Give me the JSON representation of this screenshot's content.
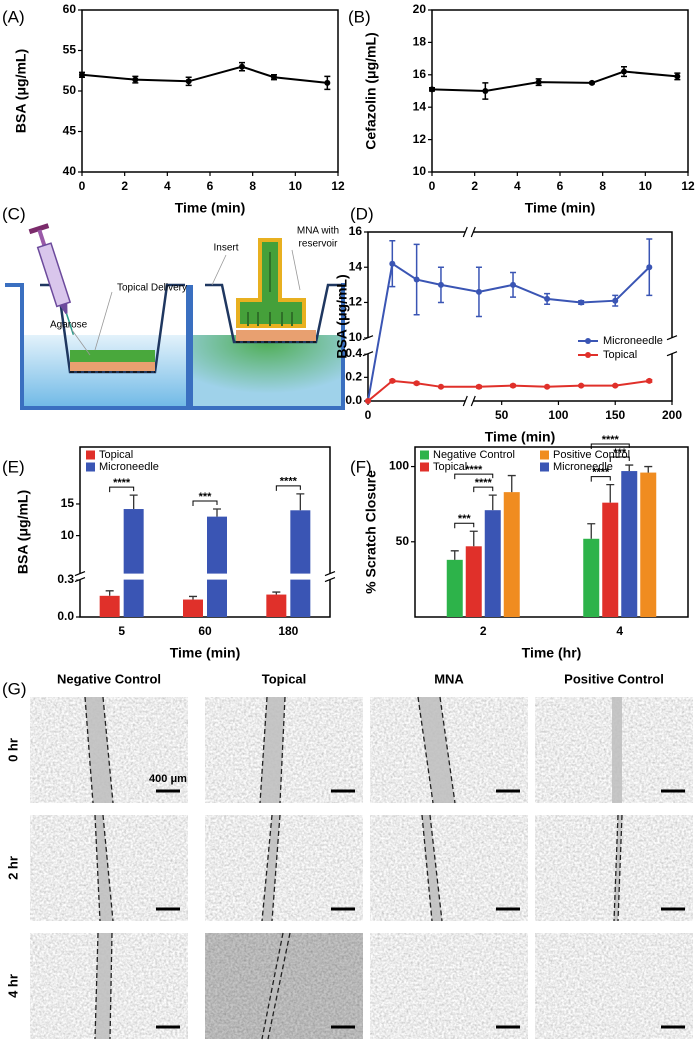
{
  "chart_data": [
    {
      "type": "line",
      "panel": "(A)",
      "x": [
        0,
        2.5,
        5,
        7.5,
        9,
        11.5
      ],
      "values": [
        52,
        51.4,
        51.2,
        53,
        51.7,
        51
      ],
      "errors": [
        0.3,
        0.4,
        0.5,
        0.5,
        0.3,
        0.8
      ],
      "color": "#000000",
      "xlabel": "Time (min)",
      "ylabel": "BSA (μg/mL)",
      "xlim": [
        0,
        12
      ],
      "xticks": [
        0,
        2,
        4,
        6,
        8,
        10,
        12
      ],
      "ylim": [
        40,
        60
      ],
      "yticks": [
        40,
        45,
        50,
        55,
        60
      ]
    },
    {
      "type": "line",
      "panel": "(B)",
      "x": [
        0,
        2.5,
        5,
        7.5,
        9,
        11.5
      ],
      "values": [
        15.1,
        15.0,
        15.55,
        15.5,
        16.2,
        15.9
      ],
      "errors": [
        0.1,
        0.5,
        0.2,
        0.05,
        0.3,
        0.2
      ],
      "color": "#000000",
      "xlabel": "Time (min)",
      "ylabel": "Cefazolin (μg/mL)",
      "xlim": [
        0,
        12
      ],
      "xticks": [
        0,
        2,
        4,
        6,
        8,
        10,
        12
      ],
      "ylim": [
        10,
        20
      ],
      "yticks": [
        10,
        12,
        14,
        16,
        18,
        20
      ]
    },
    {
      "type": "line",
      "panel": "(D)",
      "x": [
        0,
        5,
        10,
        15,
        30,
        60,
        90,
        120,
        150,
        180
      ],
      "series": [
        {
          "name": "Microneedle",
          "color": "#3a55b4",
          "values": [
            0,
            14.2,
            13.3,
            13.0,
            12.6,
            13.0,
            12.2,
            12.0,
            12.1,
            14.0
          ],
          "errors": [
            0,
            1.3,
            2.0,
            1.0,
            1.4,
            0.7,
            0.3,
            0.1,
            0.3,
            1.6
          ]
        },
        {
          "name": "Topical",
          "color": "#e0302a",
          "values": [
            0,
            0.17,
            0.15,
            0.12,
            0.12,
            0.13,
            0.12,
            0.13,
            0.13,
            0.17
          ],
          "errors": [
            0,
            0.01,
            0.01,
            0.005,
            0.01,
            0.01,
            0.005,
            0.005,
            0.005,
            0.01
          ]
        }
      ],
      "xlabel": "Time (min)",
      "ylabel": "BSA (μg/mL)",
      "xlim": [
        0,
        200
      ],
      "xbreak": [
        20,
        25
      ],
      "xticks": [
        0,
        50,
        100,
        150,
        200
      ],
      "ylim": [
        0,
        16
      ],
      "ybreak": [
        0.4,
        10
      ],
      "yticks": [
        {
          "value": 0,
          "label": "0.0"
        },
        0.2,
        0.4,
        10,
        12,
        14,
        16
      ],
      "legend": "lower right"
    },
    {
      "type": "bar",
      "panel": "(E)",
      "categories": [
        "5",
        "60",
        "180"
      ],
      "series": [
        {
          "name": "Topical",
          "color": "#e0302a",
          "values": [
            0.17,
            0.14,
            0.18
          ],
          "errors": [
            0.04,
            0.025,
            0.02
          ]
        },
        {
          "name": "Microneedle",
          "color": "#3a55b4",
          "values": [
            14.2,
            13.0,
            14.0
          ],
          "errors": [
            2.2,
            1.2,
            2.6
          ]
        }
      ],
      "xlabel": "Time (min)",
      "ylabel": "BSA (μg/mL)",
      "ylim": [
        0,
        24
      ],
      "ybreak": [
        0.3,
        4
      ],
      "yticks": [
        {
          "value": 0,
          "label": "0.0"
        },
        0.3,
        10,
        15
      ],
      "legend": "upper left",
      "significance": [
        {
          "category": 0,
          "pair": [
            0,
            1
          ],
          "label": "****"
        },
        {
          "category": 1,
          "pair": [
            0,
            1
          ],
          "label": "***"
        },
        {
          "category": 2,
          "pair": [
            0,
            1
          ],
          "label": "****"
        }
      ]
    },
    {
      "type": "bar",
      "panel": "(F)",
      "categories": [
        "2",
        "4"
      ],
      "series": [
        {
          "name": "Negative Control",
          "color": "#2db34a",
          "values": [
            38,
            52
          ],
          "errors": [
            6,
            10
          ]
        },
        {
          "name": "Topical",
          "color": "#e0302a",
          "values": [
            47,
            76
          ],
          "errors": [
            10,
            12
          ]
        },
        {
          "name": "Microneedle",
          "color": "#3a55b4",
          "values": [
            71,
            97
          ],
          "errors": [
            10,
            4
          ]
        },
        {
          "name": "Positive Control",
          "color": "#f08c20",
          "values": [
            83,
            96
          ],
          "errors": [
            11,
            4
          ]
        }
      ],
      "xlabel": "Time (hr)",
      "ylabel": "% Scratch Closure",
      "ylim": [
        0,
        113
      ],
      "yticks": [
        50,
        100
      ],
      "legend": "upper left",
      "significance": [
        {
          "category": 0,
          "pair": [
            0,
            1
          ],
          "label": "***"
        },
        {
          "category": 0,
          "pair": [
            1,
            2
          ],
          "label": "****"
        },
        {
          "category": 0,
          "pair": [
            0,
            2
          ],
          "label": "****"
        },
        {
          "category": 1,
          "pair": [
            1,
            2
          ],
          "label": "***"
        },
        {
          "category": 1,
          "pair": [
            0,
            1
          ],
          "label": "****"
        },
        {
          "category": 1,
          "pair": [
            0,
            2
          ],
          "label": "****"
        }
      ]
    }
  ],
  "diagram": {
    "panel": "(C)",
    "topical_delivery": "Topical Delivery",
    "agarose": "Agarose",
    "insert": "Insert",
    "mna_label": [
      "MNA with",
      "reservoir"
    ]
  },
  "micrographs": {
    "panel": "(G)",
    "columns": [
      "Negative Control",
      "Topical",
      "MNA",
      "Positive Control"
    ],
    "rows": [
      "0 hr",
      "2 hr",
      "4 hr"
    ],
    "scale_bar": "400 μm"
  }
}
